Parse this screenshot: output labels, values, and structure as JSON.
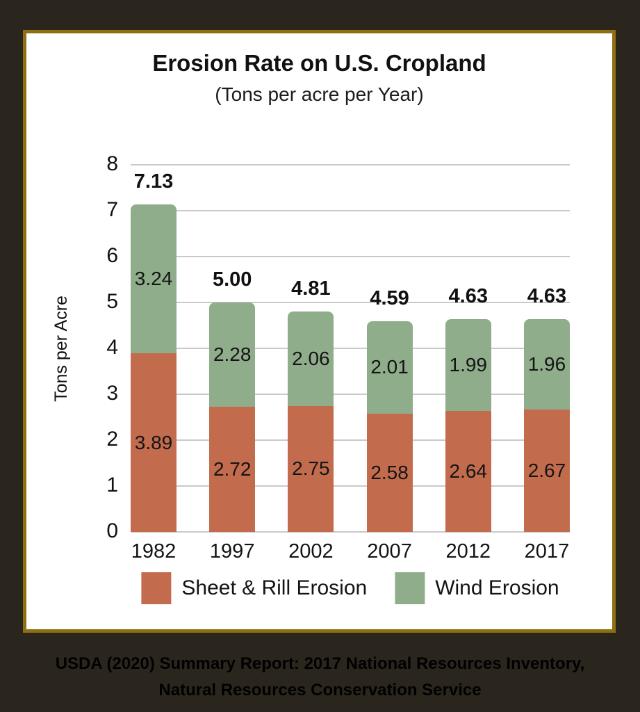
{
  "title": "Erosion Rate on U.S. Cropland",
  "subtitle": "(Tons per acre per Year)",
  "caption": {
    "line1": "USDA (2020) Summary Report: 2017 National Resources Inventory,",
    "line2": "Natural Resources Conservation Service"
  },
  "colors": {
    "page_background": "#2B261D",
    "frame_border": "#8E7012",
    "card_background": "#FFFFFF",
    "gridline": "#C9C9C9",
    "sheet_rill": "#C26C4D",
    "wind": "#8FAD8B"
  },
  "chart_data": {
    "type": "bar",
    "stacked": true,
    "title": "Erosion Rate on U.S. Cropland",
    "subtitle": "(Tons per acre per Year)",
    "categories": [
      "1982",
      "1997",
      "2002",
      "2007",
      "2012",
      "2017"
    ],
    "series": [
      {
        "name": "Sheet & Rill Erosion",
        "color": "#C26C4D",
        "values": [
          3.89,
          2.72,
          2.75,
          2.58,
          2.64,
          2.67
        ]
      },
      {
        "name": "Wind Erosion",
        "color": "#8FAD8B",
        "values": [
          3.24,
          2.28,
          2.06,
          2.01,
          1.99,
          1.96
        ]
      }
    ],
    "totals": [
      "7.13",
      "5.00",
      "4.81",
      "4.59",
      "4.63",
      "4.63"
    ],
    "xlabel": "",
    "ylabel": "Tons per Acre",
    "ylim": [
      0,
      8
    ],
    "yticks": [
      0,
      1,
      2,
      3,
      4,
      5,
      6,
      7,
      8
    ],
    "grid": true,
    "legend_position": "bottom"
  }
}
